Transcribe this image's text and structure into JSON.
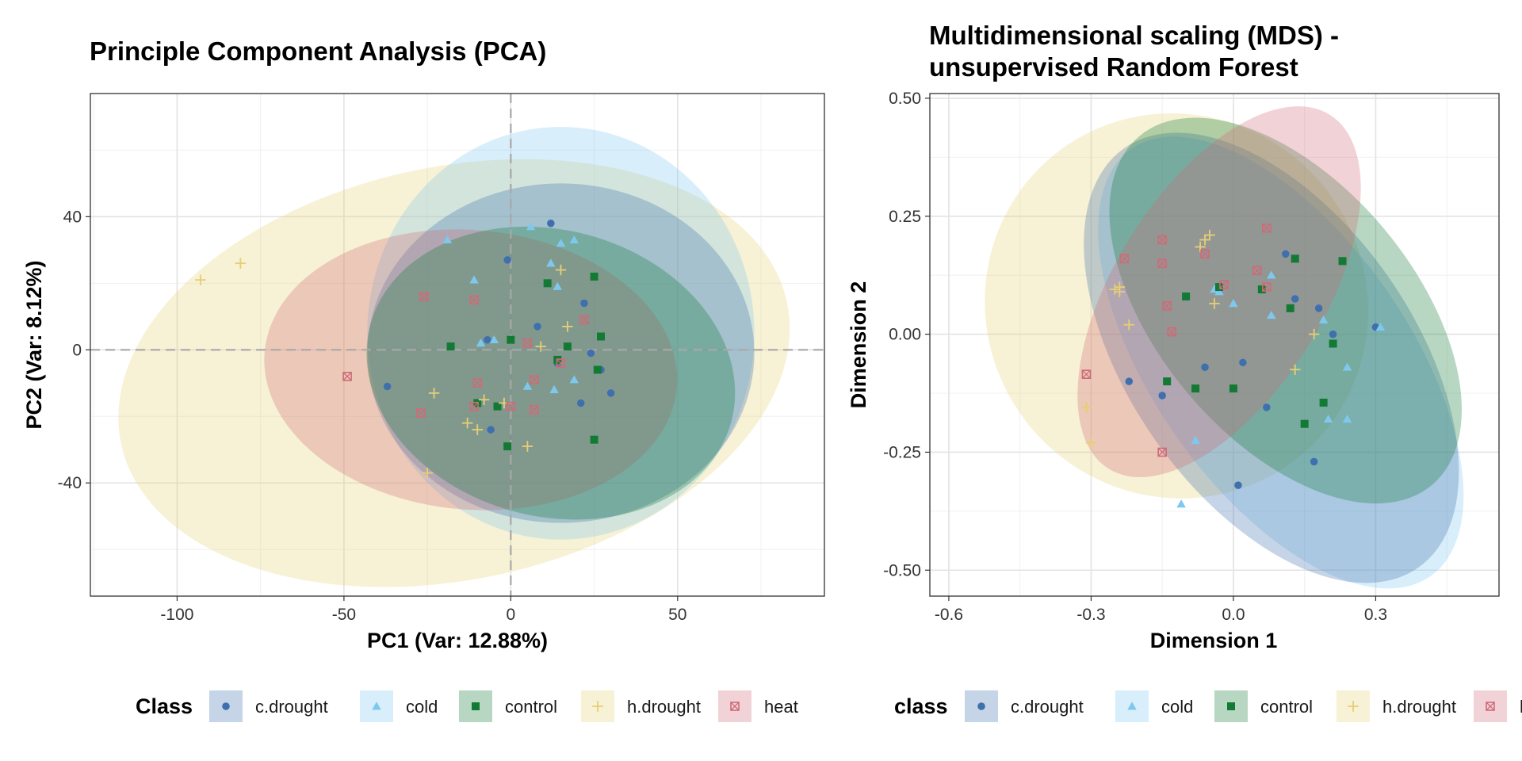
{
  "colors": {
    "c.drought": "#3f6fad",
    "cold": "#7ec8ee",
    "control": "#127a34",
    "h.drought": "#e6cf73",
    "heat": "#cf6b78"
  },
  "chart_data": [
    {
      "type": "scatter",
      "title": "Principle Component Analysis (PCA)",
      "xlabel": "PC1 (Var: 12.88%)",
      "ylabel": "PC2 (Var: 8.12%)",
      "xlim": [
        -126,
        94
      ],
      "ylim": [
        -74,
        77
      ],
      "xticks": [
        -100,
        -50,
        0,
        50
      ],
      "xtick_labels": [
        "-100",
        "-50",
        "0",
        "50"
      ],
      "yticks": [
        -40,
        0,
        40
      ],
      "ytick_labels": [
        "-40",
        "0",
        "40"
      ],
      "reference_lines": {
        "x": 0,
        "y": 0
      },
      "grid": true,
      "legend": {
        "title": "Class",
        "position": "bottom",
        "entries": [
          "c.drought",
          "cold",
          "control",
          "h.drought",
          "heat"
        ]
      },
      "ellipses": [
        {
          "class": "h.drought",
          "cx": -17,
          "cy": -7,
          "rx": 102,
          "ry": 62,
          "angle": 12
        },
        {
          "class": "cold",
          "cx": 15,
          "cy": 5,
          "rx": 58,
          "ry": 62,
          "angle": 0
        },
        {
          "class": "c.drought",
          "cx": 15,
          "cy": -1,
          "rx": 58,
          "ry": 51,
          "angle": 0
        },
        {
          "class": "heat",
          "cx": -12,
          "cy": -6,
          "rx": 62,
          "ry": 42,
          "angle": -5
        },
        {
          "class": "control",
          "cx": 12,
          "cy": -7,
          "rx": 56,
          "ry": 43,
          "angle": -15
        }
      ],
      "series": [
        {
          "name": "c.drought",
          "points": [
            [
              12,
              38
            ],
            [
              -1,
              27
            ],
            [
              22,
              14
            ],
            [
              -7,
              3
            ],
            [
              8,
              7
            ],
            [
              24,
              -1
            ],
            [
              14,
              -4
            ],
            [
              27,
              -6
            ],
            [
              -37,
              -11
            ],
            [
              30,
              -13
            ],
            [
              21,
              -16
            ],
            [
              -6,
              -24
            ]
          ]
        },
        {
          "name": "cold",
          "points": [
            [
              -19,
              33
            ],
            [
              6,
              37
            ],
            [
              15,
              32
            ],
            [
              19,
              33
            ],
            [
              12,
              26
            ],
            [
              -11,
              21
            ],
            [
              14,
              19
            ],
            [
              -9,
              2
            ],
            [
              -5,
              3
            ],
            [
              5,
              -11
            ],
            [
              13,
              -12
            ],
            [
              19,
              -9
            ]
          ]
        },
        {
          "name": "control",
          "points": [
            [
              11,
              20
            ],
            [
              25,
              22
            ],
            [
              -18,
              1
            ],
            [
              0,
              3
            ],
            [
              17,
              1
            ],
            [
              27,
              4
            ],
            [
              26,
              -6
            ],
            [
              14,
              -3
            ],
            [
              -10,
              -16
            ],
            [
              -4,
              -17
            ],
            [
              -1,
              -29
            ],
            [
              25,
              -27
            ]
          ]
        },
        {
          "name": "h.drought",
          "points": [
            [
              -93,
              21
            ],
            [
              -81,
              26
            ],
            [
              15,
              24
            ],
            [
              17,
              7
            ],
            [
              9,
              1
            ],
            [
              -23,
              -13
            ],
            [
              -8,
              -15
            ],
            [
              -2,
              -16
            ],
            [
              -25,
              -37
            ],
            [
              -13,
              -22
            ],
            [
              -10,
              -24
            ],
            [
              5,
              -29
            ]
          ]
        },
        {
          "name": "heat",
          "points": [
            [
              -26,
              16
            ],
            [
              -11,
              15
            ],
            [
              22,
              9
            ],
            [
              5,
              2
            ],
            [
              -49,
              -8
            ],
            [
              -10,
              -10
            ],
            [
              7,
              -9
            ],
            [
              15,
              -4
            ],
            [
              -11,
              -17
            ],
            [
              0,
              -17
            ],
            [
              7,
              -18
            ],
            [
              -27,
              -19
            ]
          ]
        }
      ]
    },
    {
      "type": "scatter",
      "title": "Multidimensional scaling (MDS) -\nunsupervised Random Forest",
      "xlabel": "Dimension 1",
      "ylabel": "Dimension 2",
      "xlim": [
        -0.64,
        0.56
      ],
      "ylim": [
        -0.555,
        0.51
      ],
      "xticks": [
        -0.6,
        -0.3,
        0.0,
        0.3
      ],
      "xtick_labels": [
        "-0.6",
        "-0.3",
        "0.0",
        "0.3"
      ],
      "yticks": [
        -0.5,
        -0.25,
        0.0,
        0.25,
        0.5
      ],
      "ytick_labels": [
        "-0.50",
        "-0.25",
        "0.00",
        "0.25",
        "0.50"
      ],
      "grid": true,
      "legend": {
        "title": "class",
        "position": "bottom",
        "entries": [
          "c.drought",
          "cold",
          "control",
          "h.drought",
          "heat"
        ]
      },
      "ellipses": [
        {
          "class": "h.drought",
          "cx": -0.12,
          "cy": 0.06,
          "rx": 0.4,
          "ry": 0.41,
          "angle": 40
        },
        {
          "class": "cold",
          "cx": 0.1,
          "cy": -0.06,
          "rx": 0.55,
          "ry": 0.27,
          "angle": -55
        },
        {
          "class": "c.drought",
          "cx": 0.08,
          "cy": -0.05,
          "rx": 0.54,
          "ry": 0.3,
          "angle": -55
        },
        {
          "class": "control",
          "cx": 0.11,
          "cy": 0.05,
          "rx": 0.48,
          "ry": 0.27,
          "angle": -50
        },
        {
          "class": "heat",
          "cx": -0.03,
          "cy": 0.09,
          "rx": 0.44,
          "ry": 0.22,
          "angle": 58
        }
      ],
      "series": [
        {
          "name": "c.drought",
          "points": [
            [
              0.11,
              0.17
            ],
            [
              0.13,
              0.075
            ],
            [
              0.18,
              0.055
            ],
            [
              0.21,
              0.0
            ],
            [
              0.3,
              0.015
            ],
            [
              -0.22,
              -0.1
            ],
            [
              -0.15,
              -0.13
            ],
            [
              -0.06,
              -0.07
            ],
            [
              0.02,
              -0.06
            ],
            [
              0.07,
              -0.155
            ],
            [
              0.17,
              -0.27
            ],
            [
              0.01,
              -0.32
            ]
          ]
        },
        {
          "name": "cold",
          "points": [
            [
              0.08,
              0.125
            ],
            [
              -0.04,
              0.095
            ],
            [
              0.0,
              0.065
            ],
            [
              0.08,
              0.04
            ],
            [
              0.19,
              0.03
            ],
            [
              0.31,
              0.015
            ],
            [
              0.24,
              -0.07
            ],
            [
              0.2,
              -0.18
            ],
            [
              0.24,
              -0.18
            ],
            [
              -0.08,
              -0.225
            ],
            [
              -0.11,
              -0.36
            ],
            [
              -0.03,
              0.09
            ]
          ]
        },
        {
          "name": "control",
          "points": [
            [
              0.13,
              0.16
            ],
            [
              0.23,
              0.155
            ],
            [
              -0.1,
              0.08
            ],
            [
              -0.03,
              0.1
            ],
            [
              0.06,
              0.095
            ],
            [
              0.12,
              0.055
            ],
            [
              0.21,
              -0.02
            ],
            [
              -0.14,
              -0.1
            ],
            [
              -0.08,
              -0.115
            ],
            [
              0.0,
              -0.115
            ],
            [
              0.19,
              -0.145
            ],
            [
              0.15,
              -0.19
            ]
          ]
        },
        {
          "name": "h.drought",
          "points": [
            [
              -0.05,
              0.21
            ],
            [
              -0.07,
              0.185
            ],
            [
              -0.25,
              0.095
            ],
            [
              -0.24,
              0.1
            ],
            [
              -0.04,
              0.065
            ],
            [
              -0.22,
              0.02
            ],
            [
              0.17,
              0.0
            ],
            [
              0.13,
              -0.075
            ],
            [
              -0.31,
              -0.155
            ],
            [
              -0.3,
              -0.23
            ],
            [
              -0.24,
              0.09
            ],
            [
              -0.06,
              0.2
            ]
          ]
        },
        {
          "name": "heat",
          "points": [
            [
              0.07,
              0.225
            ],
            [
              -0.15,
              0.2
            ],
            [
              -0.23,
              0.16
            ],
            [
              -0.15,
              0.15
            ],
            [
              -0.06,
              0.17
            ],
            [
              0.05,
              0.135
            ],
            [
              -0.02,
              0.105
            ],
            [
              -0.14,
              0.06
            ],
            [
              -0.13,
              0.005
            ],
            [
              -0.31,
              -0.085
            ],
            [
              -0.15,
              -0.25
            ],
            [
              0.07,
              0.1
            ]
          ]
        }
      ]
    }
  ]
}
